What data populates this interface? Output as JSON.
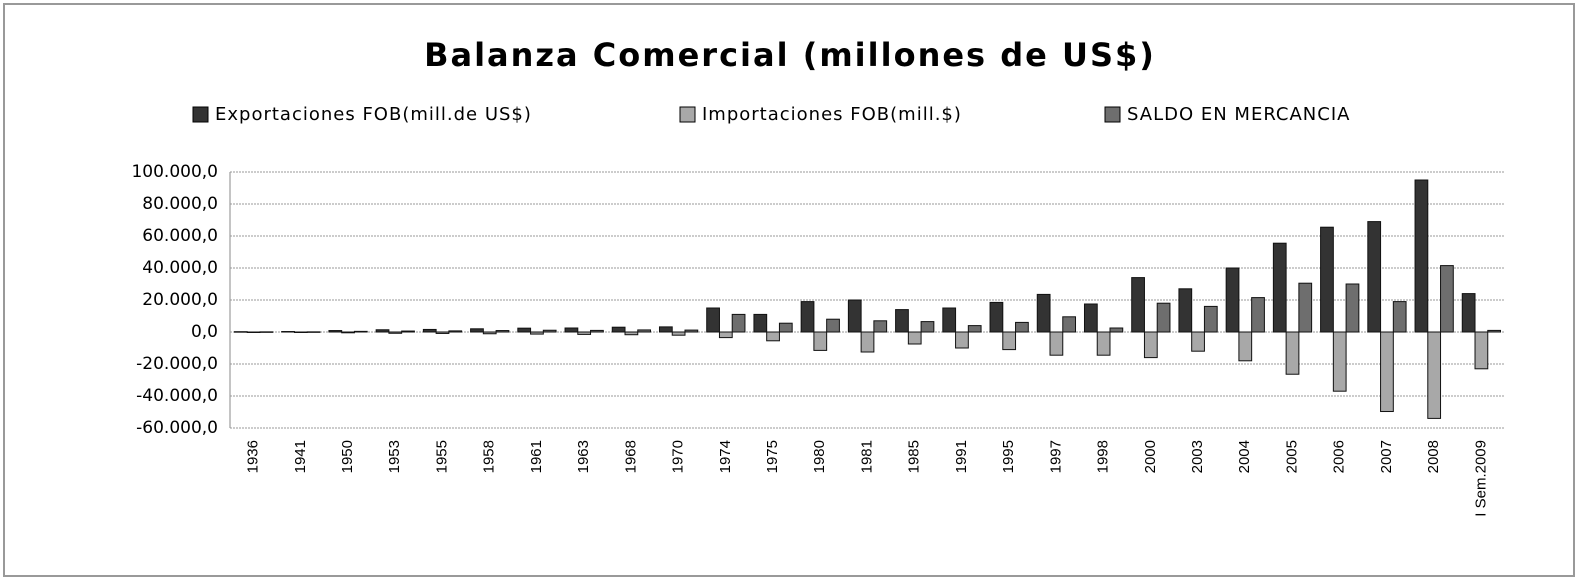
{
  "chart_data": {
    "type": "bar",
    "title": "Balanza Comercial (millones de US$)",
    "categories": [
      "1936",
      "1941",
      "1950",
      "1953",
      "1955",
      "1958",
      "1961",
      "1963",
      "1968",
      "1970",
      "1974",
      "1975",
      "1980",
      "1981",
      "1985",
      "1991",
      "1995",
      "1997",
      "1998",
      "2000",
      "2003",
      "2004",
      "2005",
      "2006",
      "2007",
      "2008",
      "I Sem.2009"
    ],
    "series": [
      {
        "name": "Exportaciones FOB(mill.de US$)",
        "color": "#333333",
        "values": [
          200,
          300,
          900,
          1400,
          1600,
          2000,
          2400,
          2500,
          3000,
          3200,
          15000,
          11000,
          19000,
          20000,
          14000,
          15000,
          18500,
          23500,
          17500,
          34000,
          27000,
          40000,
          55500,
          65500,
          69000,
          95000,
          24000
        ]
      },
      {
        "name": "Importaciones FOB(mill.$)",
        "color": "#a8a8a8",
        "values": [
          -100,
          -200,
          -500,
          -800,
          -900,
          -1100,
          -1300,
          -1500,
          -1700,
          -2000,
          -3500,
          -5500,
          -11500,
          -12500,
          -7500,
          -10000,
          -11000,
          -14500,
          -14500,
          -16000,
          -12000,
          -18000,
          -26400,
          -37000,
          -49700,
          -54000,
          -23000
        ]
      },
      {
        "name": "SALDO EN MERCANCIA",
        "color": "#6e6e6e",
        "values": [
          100,
          100,
          400,
          600,
          700,
          900,
          1100,
          1000,
          1300,
          1200,
          11000,
          5500,
          8000,
          7000,
          6500,
          4000,
          6000,
          9500,
          2500,
          18000,
          16000,
          21500,
          30500,
          30000,
          19000,
          41500,
          1000
        ]
      }
    ],
    "ylim": [
      -60000,
      100000
    ],
    "yticks": [
      {
        "value": -60000,
        "label": "-60.000,0"
      },
      {
        "value": -40000,
        "label": "-40.000,0"
      },
      {
        "value": -20000,
        "label": "-20.000,0"
      },
      {
        "value": 0,
        "label": "0,0"
      },
      {
        "value": 20000,
        "label": "20.000,0"
      },
      {
        "value": 40000,
        "label": "40.000,0"
      },
      {
        "value": 60000,
        "label": "60.000,0"
      },
      {
        "value": 80000,
        "label": "80.000,0"
      },
      {
        "value": 100000,
        "label": "100.000,0"
      }
    ],
    "grid": true
  }
}
